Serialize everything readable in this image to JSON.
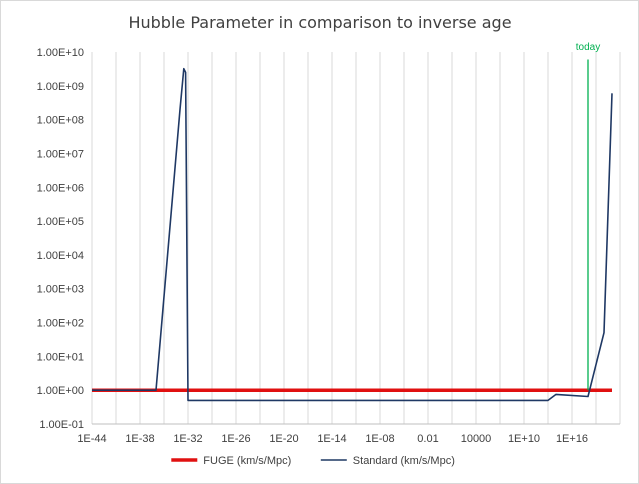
{
  "chart_data": {
    "type": "line",
    "title": "Hubble Parameter in comparison to inverse age",
    "xlabel": "",
    "ylabel": "",
    "x_scale": "log",
    "y_scale": "log",
    "xlim": [
      "1E-44",
      "1E+22"
    ],
    "ylim": [
      0.1,
      10000000000
    ],
    "x_tick_labels": [
      "1E-44",
      "1E-38",
      "1E-32",
      "1E-26",
      "1E-20",
      "1E-14",
      "1E-08",
      "0.01",
      "10000",
      "1E+10",
      "1E+16"
    ],
    "y_tick_labels": [
      "1.00E-01",
      "1.00E+00",
      "1.00E+01",
      "1.00E+02",
      "1.00E+03",
      "1.00E+04",
      "1.00E+05",
      "1.00E+06",
      "1.00E+07",
      "1.00E+08",
      "1.00E+09",
      "1.00E+10"
    ],
    "grid": "vertical",
    "legend_position": "bottom",
    "series": [
      {
        "name": "FUGE (km/s/Mpc)",
        "color": "#e01010",
        "points": [
          [
            "1E-44",
            1
          ],
          [
            "1E+21",
            1
          ]
        ]
      },
      {
        "name": "Standard (km/s/Mpc)",
        "color": "#1f3864",
        "points": [
          [
            "1E-44",
            1
          ],
          [
            "1E-36",
            1
          ],
          [
            "1E-33",
            200000000
          ],
          [
            "3E-33",
            3200000000
          ],
          [
            "5E-33",
            2500000000
          ],
          [
            "1E-32",
            0.5
          ],
          [
            "1E+13",
            0.5
          ],
          [
            "1E+14",
            0.75
          ],
          [
            "1E+18",
            0.65
          ],
          [
            "1E+20",
            50
          ],
          [
            "1E+21",
            600000000
          ]
        ]
      }
    ],
    "annotations": [
      {
        "text": "today",
        "x": "1E+18",
        "color": "#00b050"
      }
    ]
  }
}
